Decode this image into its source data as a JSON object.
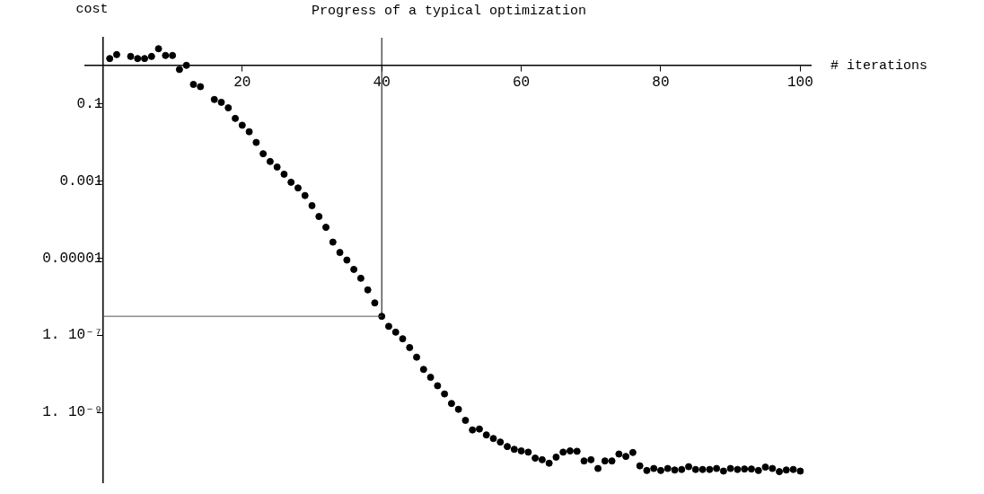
{
  "chart_data": {
    "type": "scatter",
    "title": "Progress of a typical optimization",
    "xlabel": "# iterations",
    "ylabel": "cost",
    "log": "y",
    "marker": "circle",
    "x": [
      1,
      2,
      3,
      4,
      5,
      6,
      7,
      8,
      9,
      10,
      11,
      12,
      13,
      14,
      15,
      16,
      17,
      18,
      19,
      20,
      21,
      22,
      23,
      24,
      25,
      26,
      27,
      28,
      29,
      30,
      31,
      32,
      33,
      34,
      35,
      36,
      37,
      38,
      39,
      40,
      41,
      42,
      43,
      44,
      45,
      46,
      47,
      48,
      49,
      50,
      51,
      52,
      53,
      54,
      55,
      56,
      57,
      58,
      59,
      60,
      61,
      62,
      63,
      64,
      65,
      66,
      67,
      68,
      69,
      70,
      71,
      72,
      73,
      74,
      75,
      76,
      77,
      78,
      79,
      80,
      81,
      82,
      83,
      84,
      85,
      86,
      87,
      88,
      89,
      90,
      91,
      92,
      93,
      94,
      95,
      96,
      97,
      98,
      99,
      100
    ],
    "series": [
      {
        "color": "#000000",
        "values": [
          1.5,
          1.9,
          null,
          1.7,
          1.5,
          1.5,
          1.7,
          2.7,
          1.8,
          1.8,
          0.78,
          1.0,
          0.32,
          0.28,
          null,
          0.13,
          0.11,
          0.079,
          0.042,
          0.028,
          0.019,
          0.01,
          0.0051,
          0.0032,
          0.0023,
          0.0015,
          0.00093,
          0.00066,
          0.00042,
          0.00023,
          0.00012,
          6.3e-05,
          2.6e-05,
          1.4e-05,
          8.9e-06,
          5.1e-06,
          3e-06,
          1.5e-06,
          6.9e-07,
          3.1e-07,
          1.7e-07,
          1.2e-07,
          8.1e-08,
          4.8e-08,
          2.7e-08,
          1.3e-08,
          8.1e-09,
          4.9e-09,
          3e-09,
          1.7e-09,
          1.2e-09,
          6.2e-10,
          3.5e-10,
          3.7e-10,
          2.6e-10,
          2.1e-10,
          1.7e-10,
          1.3e-10,
          1.1e-10,
          1e-10,
          9.3e-11,
          6.5e-11,
          5.9e-11,
          4.8e-11,
          6.9e-11,
          9.3e-11,
          1e-10,
          9.8e-11,
          5.5e-11,
          5.9e-11,
          3.5e-11,
          5.5e-11,
          5.5e-11,
          8.3e-11,
          7.2e-11,
          9.1e-11,
          4.1e-11,
          3.1e-11,
          3.5e-11,
          3.1e-11,
          3.5e-11,
          3.2e-11,
          3.3e-11,
          3.9e-11,
          3.3e-11,
          3.3e-11,
          3.3e-11,
          3.5e-11,
          3e-11,
          3.5e-11,
          3.3e-11,
          3.4e-11,
          3.4e-11,
          3.1e-11,
          3.8e-11,
          3.5e-11,
          2.9e-11,
          3.2e-11,
          3.3e-11,
          3e-11
        ]
      }
    ],
    "xlim": [
      -2.5,
      101.5
    ],
    "ylim": [
      1.5e-11,
      5.2
    ],
    "xticks": [
      20,
      40,
      60,
      80,
      100
    ],
    "yticks": [
      0.1,
      0.001,
      {
        "value": 1e-05,
        "label": "0.00001"
      },
      {
        "value": 1e-07,
        "label": "1. 10⁻⁷"
      },
      {
        "value": 1e-09,
        "label": "1. 10⁻⁹"
      }
    ],
    "ref_lines": [
      {
        "axis": "x",
        "value": 40,
        "color": "#000000"
      },
      {
        "axis": "y",
        "value": 3.1e-07,
        "color": "#555555"
      }
    ]
  }
}
